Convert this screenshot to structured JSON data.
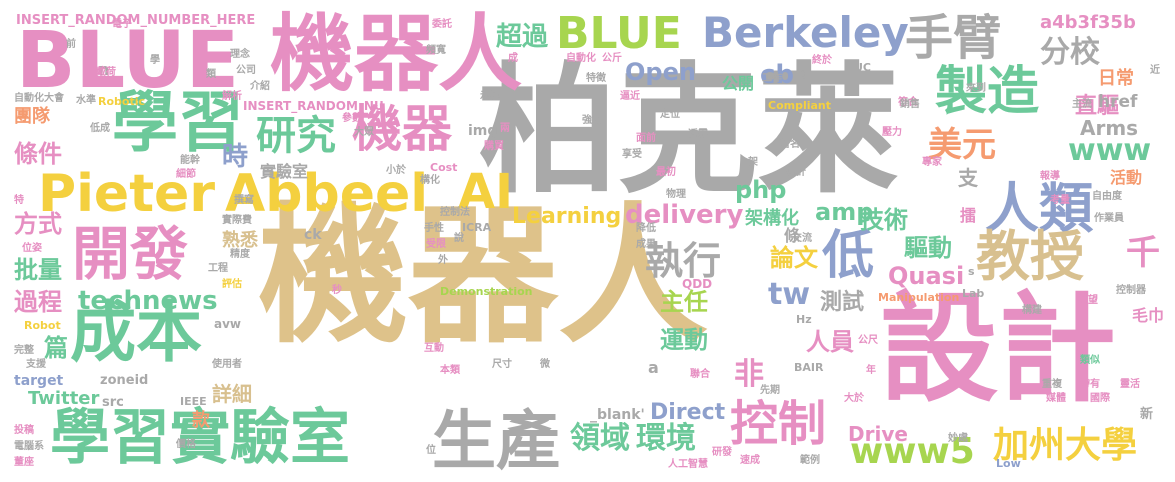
{
  "palette": {
    "sand": "#dec28a",
    "grey": "#a9a9a9",
    "pink": "#e68fc2",
    "green": "#6cc99a",
    "lime": "#a7d54f",
    "blue": "#8ea0cc",
    "orange": "#f59b70",
    "yellow": "#f4d03f",
    "tan": "#d8c08f"
  },
  "words": [
    {
      "text": "機器人",
      "color": "sand"
    },
    {
      "text": "柏克萊",
      "color": "grey"
    },
    {
      "text": "設計",
      "color": "pink"
    },
    {
      "text": "機器人",
      "color": "pink"
    },
    {
      "text": "BLUE",
      "color": "pink"
    },
    {
      "text": "學習",
      "color": "green"
    },
    {
      "text": "學習實驗室",
      "color": "green"
    },
    {
      "text": "生產",
      "color": "grey"
    },
    {
      "text": "成本",
      "color": "green"
    },
    {
      "text": "開發",
      "color": "pink"
    },
    {
      "text": "Pieter",
      "color": "yellow"
    },
    {
      "text": "Abbeel",
      "color": "yellow"
    },
    {
      "text": "AI",
      "color": "yellow"
    },
    {
      "text": "BLUE",
      "color": "lime"
    },
    {
      "text": "Berkeley",
      "color": "blue"
    },
    {
      "text": "手臂",
      "color": "grey"
    },
    {
      "text": "製造",
      "color": "green"
    },
    {
      "text": "人類",
      "color": "blue"
    },
    {
      "text": "教授",
      "color": "tan"
    },
    {
      "text": "控制",
      "color": "pink"
    },
    {
      "text": "加州大學",
      "color": "yellow"
    },
    {
      "text": "機器",
      "color": "pink"
    },
    {
      "text": "研究",
      "color": "green"
    },
    {
      "text": "technews",
      "color": "green"
    },
    {
      "text": "www5",
      "color": "lime"
    },
    {
      "text": "環境",
      "color": "green"
    },
    {
      "text": "領域",
      "color": "green"
    },
    {
      "text": "執行",
      "color": "grey"
    },
    {
      "text": "低",
      "color": "blue"
    },
    {
      "text": "美元",
      "color": "orange"
    },
    {
      "text": "www",
      "color": "green"
    },
    {
      "text": "分校",
      "color": "grey"
    },
    {
      "text": "超過",
      "color": "green"
    },
    {
      "text": "delivery",
      "color": "pink"
    },
    {
      "text": "Learning",
      "color": "yellow"
    },
    {
      "text": "php",
      "color": "green"
    },
    {
      "text": "amp",
      "color": "green"
    },
    {
      "text": "cb",
      "color": "blue"
    },
    {
      "text": "Open",
      "color": "blue"
    },
    {
      "text": "tw",
      "color": "blue"
    },
    {
      "text": "Quasi",
      "color": "pink"
    },
    {
      "text": "Direct",
      "color": "blue"
    },
    {
      "text": "Drive",
      "color": "pink"
    },
    {
      "text": "Arms",
      "color": "grey"
    },
    {
      "text": "時",
      "color": "blue"
    },
    {
      "text": "條件",
      "color": "pink"
    },
    {
      "text": "方式",
      "color": "pink"
    },
    {
      "text": "批量",
      "color": "green"
    },
    {
      "text": "過程",
      "color": "pink"
    },
    {
      "text": "篇",
      "color": "green"
    },
    {
      "text": "團隊",
      "color": "orange"
    },
    {
      "text": "主任",
      "color": "lime"
    },
    {
      "text": "運動",
      "color": "green"
    },
    {
      "text": "人員",
      "color": "pink"
    },
    {
      "text": "技術",
      "color": "green"
    },
    {
      "text": "論文",
      "color": "yellow"
    },
    {
      "text": "驅動",
      "color": "green"
    },
    {
      "text": "測試",
      "color": "grey"
    },
    {
      "text": "詳細",
      "color": "tan"
    },
    {
      "text": "實驗室",
      "color": "grey"
    },
    {
      "text": "非",
      "color": "pink"
    },
    {
      "text": "千",
      "color": "pink"
    },
    {
      "text": "直驅",
      "color": "pink"
    },
    {
      "text": "支",
      "color": "grey"
    },
    {
      "text": "架構化",
      "color": "green"
    },
    {
      "text": "熟悉",
      "color": "tan"
    },
    {
      "text": "Twitter",
      "color": "green"
    },
    {
      "text": "a4b3f35b",
      "color": "pink"
    },
    {
      "text": "INSERT_RANDOM_NUMBER_HERE",
      "color": "pink"
    },
    {
      "text": "INSERT_RANDOM_NU",
      "color": "pink"
    },
    {
      "text": "日常",
      "color": "orange"
    },
    {
      "text": "href",
      "color": "grey"
    },
    {
      "text": "活動",
      "color": "orange"
    },
    {
      "text": "公開",
      "color": "green"
    },
    {
      "text": "Demonstration",
      "color": "lime"
    },
    {
      "text": "Manipulation",
      "color": "orange"
    },
    {
      "text": "Compliant",
      "color": "yellow"
    },
    {
      "text": "Robotic",
      "color": "yellow"
    },
    {
      "text": "target",
      "color": "blue"
    },
    {
      "text": "zoneid",
      "color": "grey"
    },
    {
      "text": "src",
      "color": "grey"
    },
    {
      "text": "img",
      "color": "grey"
    },
    {
      "text": "_blank'",
      "color": "grey"
    },
    {
      "text": "ck",
      "color": "grey"
    },
    {
      "text": "avw",
      "color": "grey"
    },
    {
      "text": "QDD",
      "color": "pink"
    },
    {
      "text": "ICRA",
      "color": "grey"
    },
    {
      "text": "BAIR",
      "color": "grey"
    },
    {
      "text": "Cost",
      "color": "pink"
    },
    {
      "text": "Robot",
      "color": "yellow"
    },
    {
      "text": "IEEE",
      "color": "grey"
    },
    {
      "text": "Low",
      "color": "blue"
    },
    {
      "text": "Hz",
      "color": "grey"
    },
    {
      "text": "Lab",
      "color": "grey"
    },
    {
      "text": "UC",
      "color": "grey"
    },
    {
      "text": "擂",
      "color": "pink"
    },
    {
      "text": "條",
      "color": "grey"
    },
    {
      "text": "a",
      "color": "grey"
    },
    {
      "text": "n",
      "color": "grey"
    },
    {
      "text": "s",
      "color": "grey"
    },
    {
      "text": "新",
      "color": "grey"
    },
    {
      "text": "前",
      "color": "grey"
    },
    {
      "text": "學",
      "color": "grey"
    },
    {
      "text": "電子",
      "color": "pink"
    },
    {
      "text": "委託",
      "color": "pink"
    },
    {
      "text": "頻寬",
      "color": "grey"
    },
    {
      "text": "成",
      "color": "pink"
    },
    {
      "text": "自動化",
      "color": "pink"
    },
    {
      "text": "公斤",
      "color": "pink"
    },
    {
      "text": "終於",
      "color": "pink"
    },
    {
      "text": "符合",
      "color": "pink"
    },
    {
      "text": "近",
      "color": "grey"
    },
    {
      "text": "來到",
      "color": "grey"
    },
    {
      "text": "工作",
      "color": "grey"
    },
    {
      "text": "約",
      "color": "grey"
    },
    {
      "text": "特徵",
      "color": "grey"
    },
    {
      "text": "逼近",
      "color": "pink"
    },
    {
      "text": "示範",
      "color": "grey"
    },
    {
      "text": "強化",
      "color": "grey"
    },
    {
      "text": "定位",
      "color": "grey"
    },
    {
      "text": "透露",
      "color": "grey"
    },
    {
      "text": "主流",
      "color": "grey"
    },
    {
      "text": "壓力",
      "color": "pink"
    },
    {
      "text": "銷售",
      "color": "grey"
    },
    {
      "text": "專家",
      "color": "pink"
    },
    {
      "text": "考量",
      "color": "pink"
    },
    {
      "text": "作業員",
      "color": "grey"
    },
    {
      "text": "自由度",
      "color": "grey"
    },
    {
      "text": "報導",
      "color": "pink"
    },
    {
      "text": "著名",
      "color": "grey"
    },
    {
      "text": "享受",
      "color": "grey"
    },
    {
      "text": "面前",
      "color": "pink"
    },
    {
      "text": "最初",
      "color": "pink"
    },
    {
      "text": "估計",
      "color": "grey"
    },
    {
      "text": "架",
      "color": "grey"
    },
    {
      "text": "物理",
      "color": "grey"
    },
    {
      "text": "降低",
      "color": "grey"
    },
    {
      "text": "成果",
      "color": "grey"
    },
    {
      "text": "交流",
      "color": "grey"
    },
    {
      "text": "控制器",
      "color": "grey"
    },
    {
      "text": "希望",
      "color": "pink"
    },
    {
      "text": "構建",
      "color": "grey"
    },
    {
      "text": "類似",
      "color": "green"
    },
    {
      "text": "帶有",
      "color": "pink"
    },
    {
      "text": "年",
      "color": "pink"
    },
    {
      "text": "重複",
      "color": "grey"
    },
    {
      "text": "媒體",
      "color": "pink"
    },
    {
      "text": "國際",
      "color": "pink"
    },
    {
      "text": "靈活",
      "color": "pink"
    },
    {
      "text": "公尺",
      "color": "pink"
    },
    {
      "text": "聯合",
      "color": "pink"
    },
    {
      "text": "大於",
      "color": "pink"
    },
    {
      "text": "先期",
      "color": "grey"
    },
    {
      "text": "範例",
      "color": "grey"
    },
    {
      "text": "速成",
      "color": "pink"
    },
    {
      "text": "妙處",
      "color": "grey"
    },
    {
      "text": "人工智慧",
      "color": "pink"
    },
    {
      "text": "研發",
      "color": "pink"
    },
    {
      "text": "微",
      "color": "grey"
    },
    {
      "text": "尺寸",
      "color": "grey"
    },
    {
      "text": "本類",
      "color": "pink"
    },
    {
      "text": "互動",
      "color": "pink"
    },
    {
      "text": "位",
      "color": "grey"
    },
    {
      "text": "外",
      "color": "grey"
    },
    {
      "text": "秒",
      "color": "pink"
    },
    {
      "text": "受限",
      "color": "pink"
    },
    {
      "text": "手性",
      "color": "grey"
    },
    {
      "text": "說",
      "color": "grey"
    },
    {
      "text": "控制法",
      "color": "grey"
    },
    {
      "text": "小於",
      "color": "grey"
    },
    {
      "text": "構化",
      "color": "grey"
    },
    {
      "text": "購買",
      "color": "pink"
    },
    {
      "text": "兩",
      "color": "pink"
    },
    {
      "text": "參數",
      "color": "pink"
    },
    {
      "text": "大眾",
      "color": "grey"
    },
    {
      "text": "介紹",
      "color": "grey"
    },
    {
      "text": "解析",
      "color": "pink"
    },
    {
      "text": "公司",
      "color": "grey"
    },
    {
      "text": "理念",
      "color": "grey"
    },
    {
      "text": "類",
      "color": "grey"
    },
    {
      "text": "戴荷",
      "color": "pink"
    },
    {
      "text": "自動化大會",
      "color": "grey"
    },
    {
      "text": "水準",
      "color": "grey"
    },
    {
      "text": "低成",
      "color": "grey"
    },
    {
      "text": "能幹",
      "color": "grey"
    },
    {
      "text": "細節",
      "color": "pink"
    },
    {
      "text": "撰寫",
      "color": "grey"
    },
    {
      "text": "實際費",
      "color": "grey"
    },
    {
      "text": "精度",
      "color": "grey"
    },
    {
      "text": "工程",
      "color": "grey"
    },
    {
      "text": "評估",
      "color": "yellow"
    },
    {
      "text": "位姿",
      "color": "pink"
    },
    {
      "text": "特",
      "color": "pink"
    },
    {
      "text": "完整",
      "color": "grey"
    },
    {
      "text": "支援",
      "color": "grey"
    },
    {
      "text": "使用者",
      "color": "grey"
    },
    {
      "text": "投稿",
      "color": "pink"
    },
    {
      "text": "電腦系",
      "color": "grey"
    },
    {
      "text": "董座",
      "color": "pink"
    },
    {
      "text": "價格",
      "color": "grey"
    },
    {
      "text": "款",
      "color": "orange"
    },
    {
      "text": "毛巾",
      "color": "pink"
    }
  ]
}
